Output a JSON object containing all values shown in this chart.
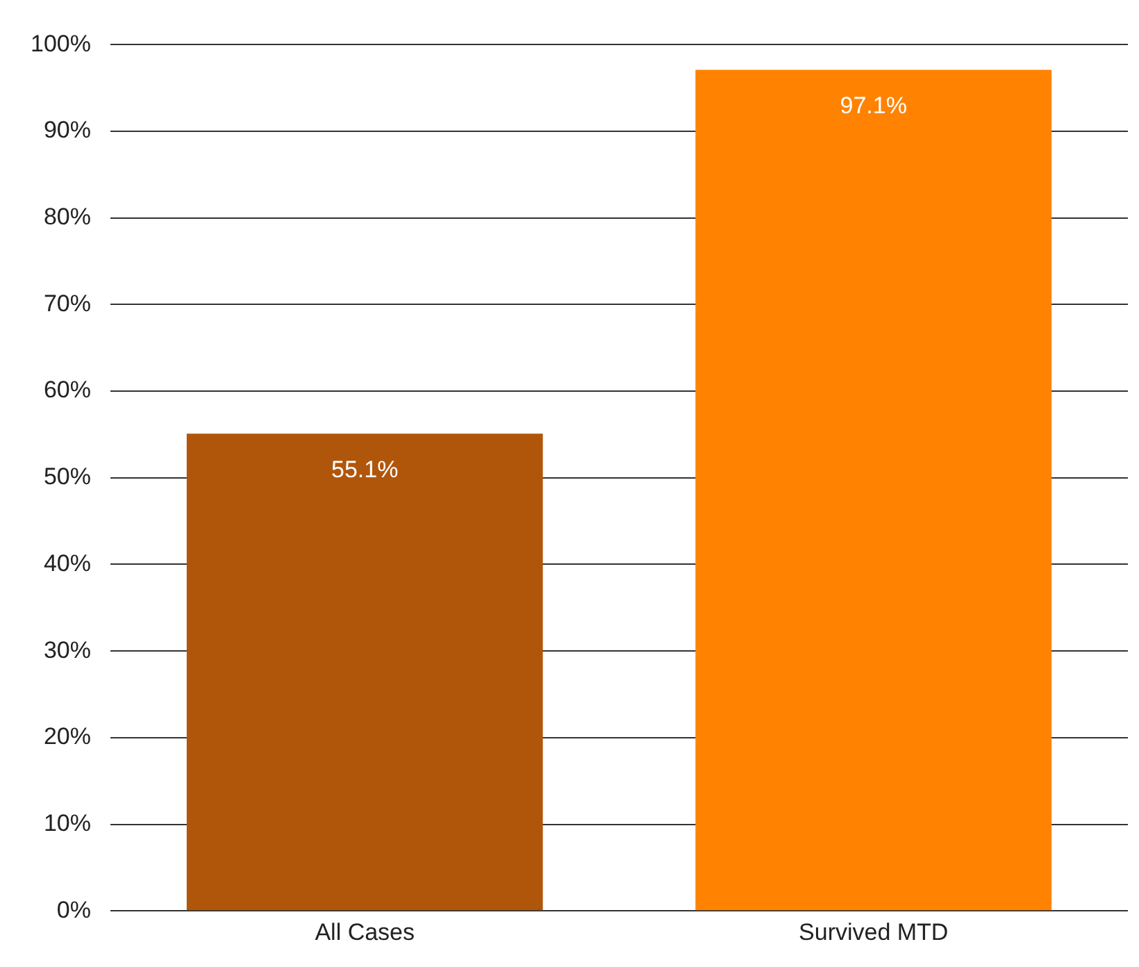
{
  "chart_data": {
    "type": "bar",
    "categories": [
      "All Cases",
      "Survived MTD"
    ],
    "values": [
      55.1,
      97.1
    ],
    "colors": [
      "#b0560b",
      "#ff8300"
    ],
    "value_labels": [
      "55.1%",
      "97.1%"
    ],
    "ylim": [
      0,
      100
    ],
    "yticks": [
      {
        "value": 0,
        "label": "0%"
      },
      {
        "value": 10,
        "label": "10%"
      },
      {
        "value": 20,
        "label": "20%"
      },
      {
        "value": 30,
        "label": "30%"
      },
      {
        "value": 40,
        "label": "40%"
      },
      {
        "value": 50,
        "label": "50%"
      },
      {
        "value": 60,
        "label": "60%"
      },
      {
        "value": 70,
        "label": "70%"
      },
      {
        "value": 80,
        "label": "80%"
      },
      {
        "value": 90,
        "label": "90%"
      },
      {
        "value": 100,
        "label": "100%"
      }
    ],
    "grid": "y",
    "legend": false
  }
}
